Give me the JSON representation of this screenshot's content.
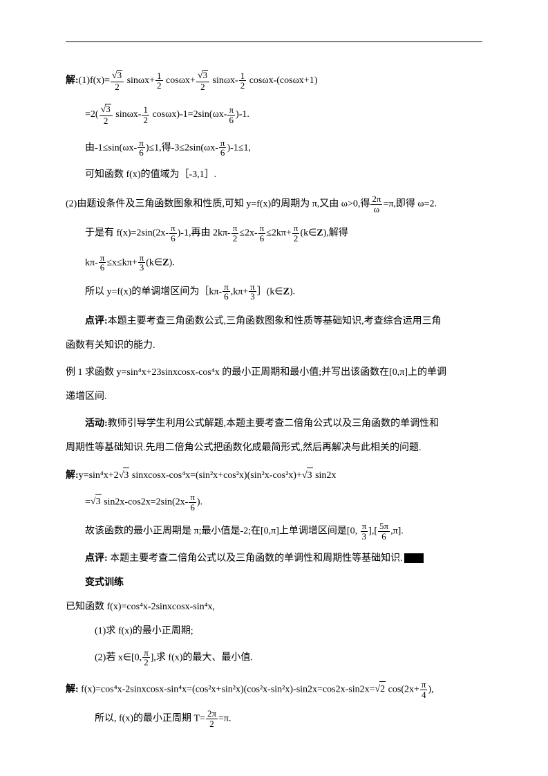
{
  "line1_a": "解:",
  "line1_b": "(1)f(x)=",
  "f_sqrt3": "3",
  "f_2": "2",
  "t1": " sinωx+",
  "f_1": "1",
  "t2": " cosωx+",
  "t3": " sinωx-",
  "t4": " cosωx-(cosωx+1)",
  "line2_a": "=2(",
  "line2_b": " sinωx-",
  "line2_c": " cosωx)-1=2sin(ωx-",
  "pi": "π",
  "f_6": "6",
  "line2_d": ")-1.",
  "line3_a": "由-1≤sin(ωx-",
  "line3_b": ")≤1,得-3≤2sin(ωx-",
  "line3_c": ")-1≤1,",
  "line4": "可知函数 f(x)的值域为［-3,1］.",
  "line5_a": "(2)由题设条件及三角函数图象和性质,可知 y=f(x)的周期为 π,又由 ω>0,得",
  "f_2pi": "2π",
  "f_omega": "ω",
  "line5_b": "=π,即得 ω=2.",
  "line6_a": "于是有 f(x)=2sin(2x-",
  "line6_b": ")-1,再由 2kπ-",
  "line6_c": "≤2x-",
  "line6_d": "≤2kπ+",
  "line6_e": "(k∈",
  "Zbold": "Z",
  "line6_f": "),解得",
  "line7_a": "kπ-",
  "line7_b": "≤x≤kπ+",
  "f_3": "3",
  "line7_c": "(k∈",
  "line7_d": ").",
  "line8_a": "所以 y=f(x)的单调增区间为［kπ-",
  "line8_b": ",kπ+",
  "line8_c": "］(k∈",
  "line8_d": ").",
  "line9_a": "点评:",
  "line9_b": "本题主要考查三角函数公式,三角函数图象和性质等基础知识,考查综合运用三角",
  "line10": "函数有关知识的能力.",
  "line11": "例 1  求函数 y=sin⁴x+23sinxcosx-cos⁴x 的最小正周期和最小值;并写出该函数在[0,π]上的单调",
  "line12": "递增区间.",
  "line13_a": "活动:",
  "line13_b": "教师引导学生利用公式解题,本题主要考查二倍角公式以及三角函数的单调性和",
  "line14": "周期性等基础知识.先用二倍角公式把函数化成最简形式,然后再解决与此相关的问题.",
  "line15_a": "解:",
  "line15_b": "y=sin⁴x+2",
  "line15_c": " sinxcosx-cos⁴x=(sin²x+cos²x)(sin²x-cos²x)+",
  "line15_d": " sin2x",
  "line16_a": "=",
  "line16_b": " sin2x-cos2x=2sin(2x-",
  "line16_c": ").",
  "line17_a": "故该函数的最小正周期是 π;最小值是-2;在[0,π]上单调增区间是[0, ",
  "line17_b": "],[",
  "f_5pi": "5π",
  "line17_c": ",π].",
  "line18_a": "点评:",
  "line18_b": "  本题主要考查二倍角公式以及三角函数的单调性和周期性等基础知识.",
  "line19": "变式训练",
  "line20": "已知函数 f(x)=cos⁴x-2sinxcosx-sin⁴x,",
  "line21": "(1)求 f(x)的最小正周期;",
  "line22_a": "(2)若 x∈[0,",
  "line22_b": "],求 f(x)的最大、最小值.",
  "line23_a": "解:",
  "line23_b": " f(x)=cos⁴x-2sinxcosx-sin⁴x=(cos²x+sin²x)(cos²x-sin²x)-sin2x=cos2x-sin2x=",
  "sqrt2": "2",
  "line23_c": " cos(2x+",
  "f_4": "4",
  "line23_d": "),",
  "line24_a": "所以,  f(x)的最小正周期 T=",
  "line24_b": "=π."
}
